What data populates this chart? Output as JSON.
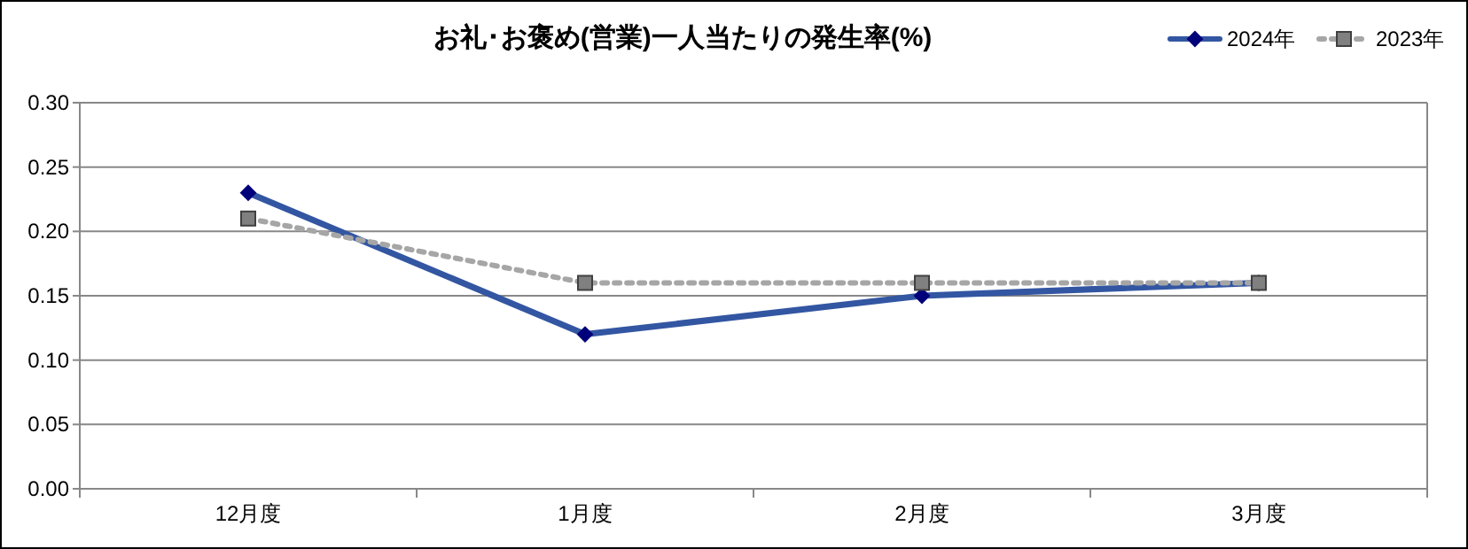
{
  "chart_data": {
    "type": "line",
    "title": "お礼･お褒め(営業)一人当たりの発生率(%)",
    "categories": [
      "12月度",
      "1月度",
      "2月度",
      "3月度"
    ],
    "series": [
      {
        "name": "2024年",
        "color": "#3356a2",
        "marker": "diamond",
        "line_style": "solid",
        "values": [
          0.23,
          0.12,
          0.15,
          0.16
        ]
      },
      {
        "name": "2023年",
        "color": "#a6a6a6",
        "marker": "square",
        "line_style": "dotted",
        "values": [
          0.21,
          0.16,
          0.16,
          0.16
        ]
      }
    ],
    "ylim": [
      0,
      0.3
    ],
    "yticks": [
      {
        "value": 0,
        "label": "0.00"
      },
      {
        "value": 0.05,
        "label": "0.05"
      },
      {
        "value": 0.1,
        "label": "0.10"
      },
      {
        "value": 0.15,
        "label": "0.15"
      },
      {
        "value": 0.2,
        "label": "0.20"
      },
      {
        "value": 0.25,
        "label": "0.25"
      },
      {
        "value": 0.3,
        "label": "0.30"
      }
    ],
    "grid": "y",
    "legend": "top right"
  }
}
